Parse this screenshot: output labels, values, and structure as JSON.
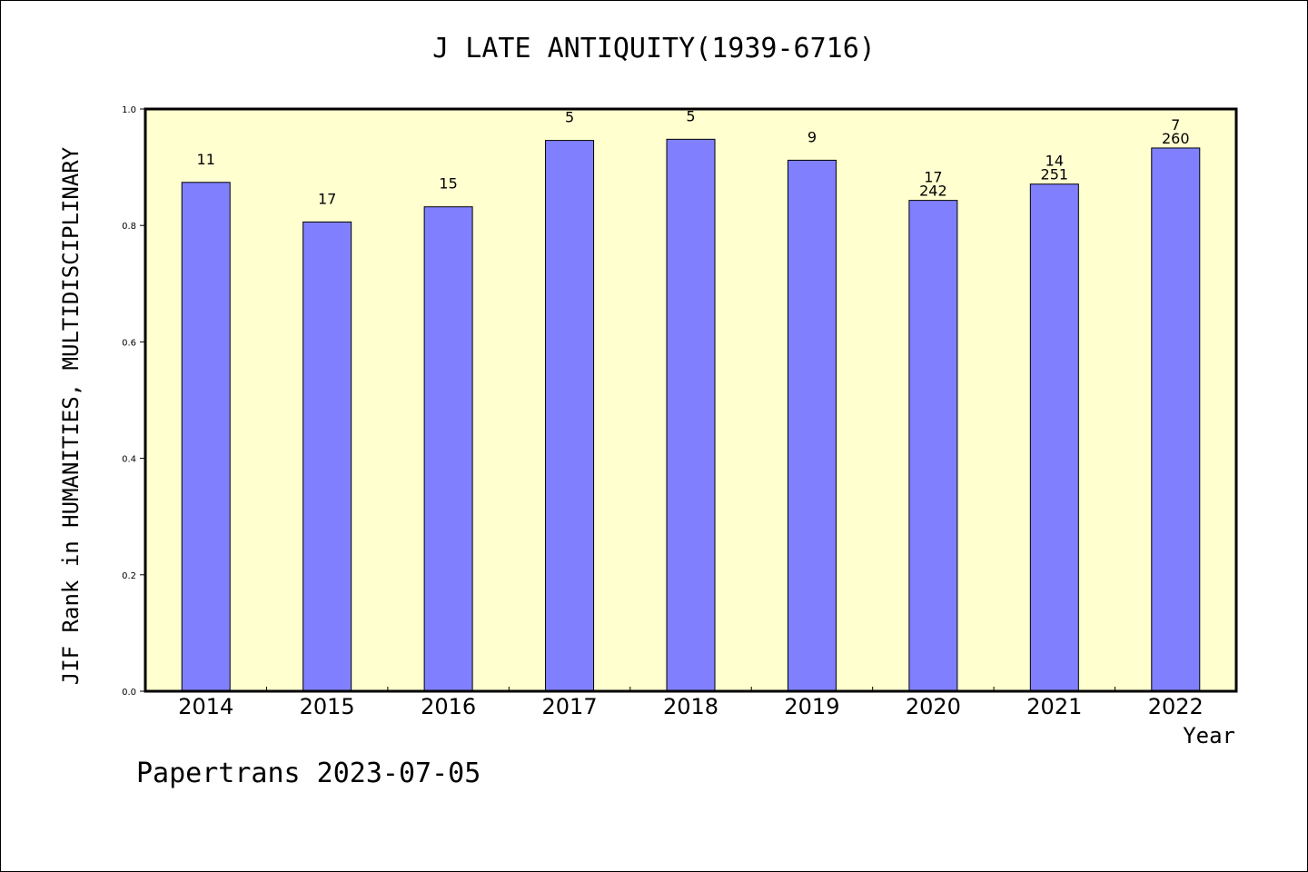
{
  "chart_data": {
    "type": "bar",
    "title": "J LATE ANTIQUITY(1939-6716)",
    "xlabel": "Year",
    "ylabel": "JIF Rank in HUMANITIES, MULTIDISCIPLINARY",
    "ylim": [
      0,
      1.0
    ],
    "yticks": [
      "0.0",
      "0.2",
      "0.4",
      "0.6",
      "0.8",
      "1.0"
    ],
    "categories": [
      "2014",
      "2015",
      "2016",
      "2017",
      "2018",
      "2019",
      "2020",
      "2021",
      "2022"
    ],
    "values": [
      0.874,
      0.806,
      0.832,
      0.946,
      0.948,
      0.912,
      0.843,
      0.871,
      0.933
    ],
    "rank_labels": [
      "11",
      "17",
      "15",
      "5",
      "5",
      "9",
      "17",
      "14",
      "7"
    ],
    "total_labels": [
      "",
      "",
      "",
      "",
      "",
      "",
      "242",
      "251",
      "260"
    ],
    "grid": false,
    "colors": {
      "bar": "#8080ff",
      "plot_bg": "#ffffd0",
      "border": "#000000"
    }
  },
  "footer": "Papertrans 2023-07-05"
}
